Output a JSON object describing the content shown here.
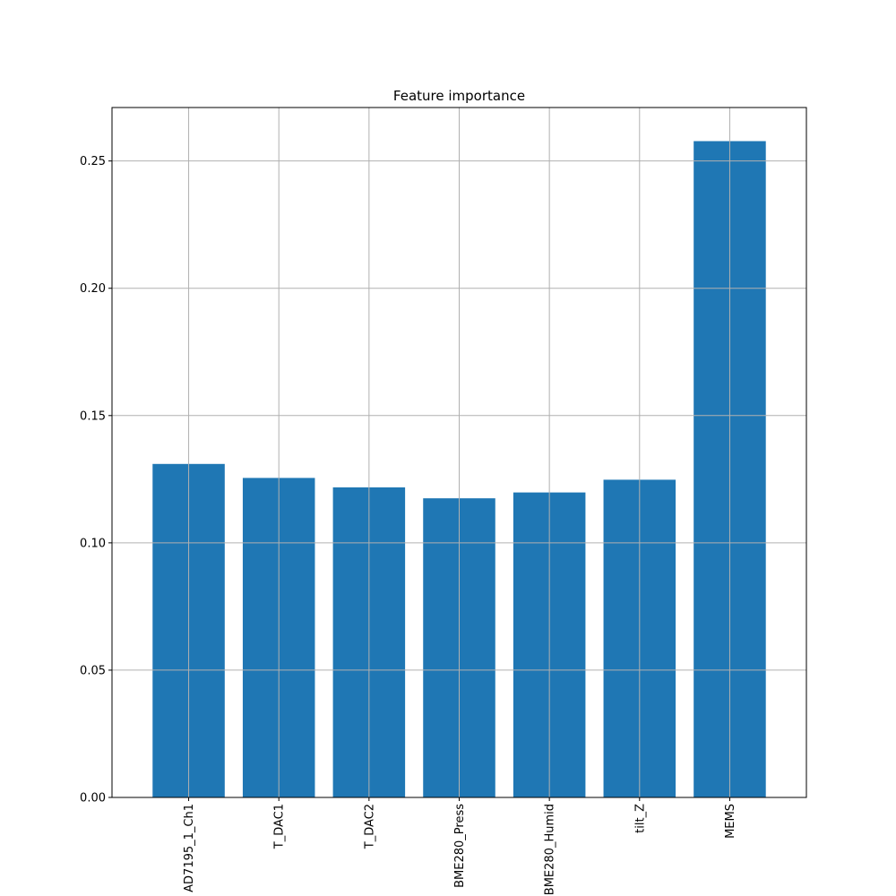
{
  "chart_data": {
    "type": "bar",
    "title": "Feature importance",
    "xlabel": "",
    "ylabel": "",
    "categories": [
      "AD7195_1_Ch1",
      "T_DAC1",
      "T_DAC2",
      "BME280_Press",
      "BME280_Humid",
      "tilt_Z",
      "MEMS"
    ],
    "values": [
      0.131,
      0.1255,
      0.1218,
      0.1175,
      0.1198,
      0.1248,
      0.2578
    ],
    "ylim": [
      0,
      0.271
    ],
    "yticks": [
      0.0,
      0.05,
      0.1,
      0.15,
      0.2,
      0.25
    ],
    "ytick_labels": [
      "0.00",
      "0.05",
      "0.10",
      "0.15",
      "0.20",
      "0.25"
    ],
    "grid": true,
    "bar_color": "#1f77b4",
    "grid_color": "#b0b0b0"
  }
}
